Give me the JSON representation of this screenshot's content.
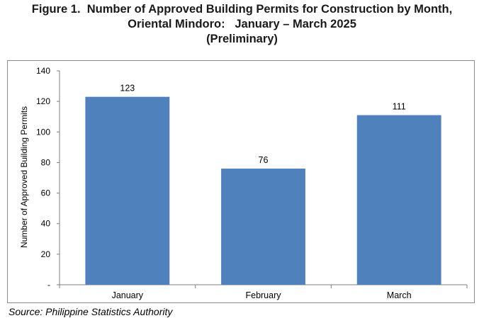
{
  "title_lines": [
    "Figure 1.  Number of Approved Building Permits for Construction by Month,",
    "Oriental Mindoro:   January – March 2025",
    "(Preliminary)"
  ],
  "source": "Source: Philippine Statistics Authority",
  "chart_data": {
    "type": "bar",
    "title": "",
    "xlabel": "",
    "ylabel": "Number of Approved Building Permits",
    "categories": [
      "January",
      "February",
      "March"
    ],
    "values": [
      123,
      76,
      111
    ],
    "data_labels": [
      "123",
      "76",
      "111"
    ],
    "ylim": [
      0,
      140
    ],
    "y_ticks": [
      0,
      20,
      40,
      60,
      80,
      100,
      120,
      140
    ],
    "y_tick_labels": [
      "-",
      "20",
      "40",
      "60",
      "80",
      "100",
      "120",
      "140"
    ],
    "bar_color": "#4f81bd",
    "grid": false,
    "legend": "none"
  }
}
